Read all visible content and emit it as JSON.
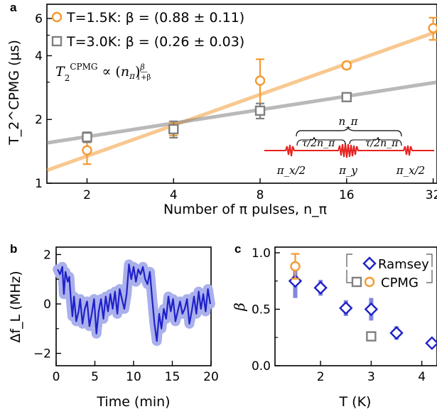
{
  "panels": {
    "a": "a",
    "b": "b",
    "c": "c"
  },
  "chart_data": [
    {
      "panel": "a",
      "type": "scatter",
      "xlabel": "Number of π pulses, n_π",
      "ylabel": "T_2^CPMG (μs)",
      "xscale": "log",
      "yscale": "log",
      "xticks": [
        2,
        4,
        8,
        16,
        32
      ],
      "yticks": [
        1,
        2,
        4,
        6
      ],
      "xlim": [
        1.45,
        33
      ],
      "ylim": [
        1,
        7
      ],
      "annotation": "T_2^CPMG ∝ (n_π)^(β/(1+β))",
      "legend_position": "top-left",
      "series": [
        {
          "name": "T=1.5K: β = (0.88 ± 0.11)",
          "color": "#f39a33",
          "marker": "circle",
          "x": [
            2,
            4,
            8,
            16,
            32
          ],
          "y": [
            1.43,
            1.8,
            3.05,
            3.6,
            5.4
          ],
          "yerr": [
            0.2,
            0.12,
            0.8,
            0.12,
            0.65
          ],
          "fit": {
            "x": [
              1.45,
              33
            ],
            "y": [
              1.15,
              5.2
            ]
          }
        },
        {
          "name": "T=3.0K: β = (0.26 ± 0.03)",
          "color": "#808080",
          "marker": "square",
          "x": [
            2,
            4,
            8,
            16
          ],
          "y": [
            1.65,
            1.8,
            2.2,
            2.55
          ],
          "yerr": [
            0.09,
            0.16,
            0.18,
            0.11
          ],
          "fit": {
            "x": [
              1.45,
              33
            ],
            "y": [
              1.55,
              3.0
            ]
          }
        }
      ],
      "inset": {
        "labels": {
          "n_pi": "n_π",
          "tau1": "τ/2n_π",
          "tau2": "τ/2n_π",
          "pulse_start": "π_x/2",
          "pulse_mid": "π_y",
          "pulse_end": "π_x/2"
        },
        "color": "#e8211d"
      }
    },
    {
      "panel": "b",
      "type": "line",
      "xlabel": "Time (min)",
      "ylabel": "Δf_L (MHz)",
      "xticks": [
        0,
        5,
        10,
        15,
        20
      ],
      "yticks": [
        -2,
        0,
        2
      ],
      "xlim": [
        0,
        20
      ],
      "ylim": [
        -2.5,
        2.3
      ],
      "color": "#1f21c8",
      "band_color": "#aab0ec",
      "x": [
        0.2,
        0.5,
        0.8,
        1.0,
        1.2,
        1.5,
        1.7,
        1.9,
        2.1,
        2.3,
        2.6,
        2.9,
        3.1,
        3.4,
        3.7,
        4.0,
        4.3,
        4.6,
        4.9,
        5.2,
        5.5,
        5.8,
        6.1,
        6.4,
        6.7,
        7.0,
        7.3,
        7.6,
        7.9,
        8.2,
        8.5,
        8.8,
        9.1,
        9.4,
        9.7,
        10.0,
        10.3,
        10.6,
        10.9,
        11.2,
        11.5,
        11.8,
        12.1,
        12.4,
        12.7,
        13.0,
        13.3,
        13.6,
        13.9,
        14.2,
        14.5,
        14.8,
        15.1,
        15.4,
        15.7,
        16.0,
        16.3,
        16.6,
        16.9,
        17.2,
        17.5,
        17.8,
        18.1,
        18.4,
        18.7,
        19.0,
        19.3,
        19.6,
        19.9
      ],
      "y": [
        1.4,
        1.2,
        1.5,
        0.4,
        1.3,
        0.9,
        1.1,
        0.2,
        -0.5,
        0.3,
        -0.7,
        -0.3,
        0.2,
        -0.8,
        -0.2,
        0.1,
        -0.9,
        -0.4,
        0.2,
        -1.2,
        -0.3,
        0.2,
        -0.6,
        0.3,
        -0.3,
        0.4,
        -0.2,
        0.5,
        -0.4,
        0.6,
        0.2,
        -0.2,
        0.4,
        1.6,
        1.0,
        1.5,
        0.9,
        1.4,
        1.2,
        1.5,
        1.0,
        0.8,
        1.3,
        0.2,
        -0.8,
        -1.5,
        -0.4,
        -1.0,
        -0.2,
        -0.6,
        0.3,
        -0.3,
        0.2,
        -0.7,
        -0.3,
        0.1,
        -0.4,
        -0.2,
        0.2,
        -0.8,
        -0.3,
        0.3,
        -0.4,
        0.5,
        -0.2,
        0.4,
        -0.3,
        0.6,
        0.0
      ]
    },
    {
      "panel": "c",
      "type": "scatter",
      "xlabel": "T (K)",
      "ylabel": "β",
      "xticks": [
        2,
        3,
        4
      ],
      "yticks": [
        0.0,
        0.5,
        1.0
      ],
      "xlim": [
        1.1,
        4.3
      ],
      "ylim": [
        0.0,
        1.05
      ],
      "legend_position": "top-right",
      "series": [
        {
          "name": "Ramsey",
          "color": "#1f21c8",
          "marker": "diamond",
          "x": [
            1.5,
            2.0,
            2.5,
            3.0,
            3.5,
            4.2
          ],
          "y": [
            0.75,
            0.69,
            0.51,
            0.5,
            0.29,
            0.2
          ],
          "yerr": [
            0.15,
            0.07,
            0.07,
            0.1,
            0.06,
            0.04
          ]
        },
        {
          "name": "CPMG",
          "color": "#f39a33",
          "marker": "circle",
          "x": [
            1.5
          ],
          "y": [
            0.88
          ],
          "yerr": [
            0.11
          ]
        },
        {
          "name": "CPMG",
          "color": "#808080",
          "marker": "square",
          "x": [
            3.0
          ],
          "y": [
            0.26
          ],
          "yerr": [
            0.03
          ]
        }
      ]
    }
  ]
}
